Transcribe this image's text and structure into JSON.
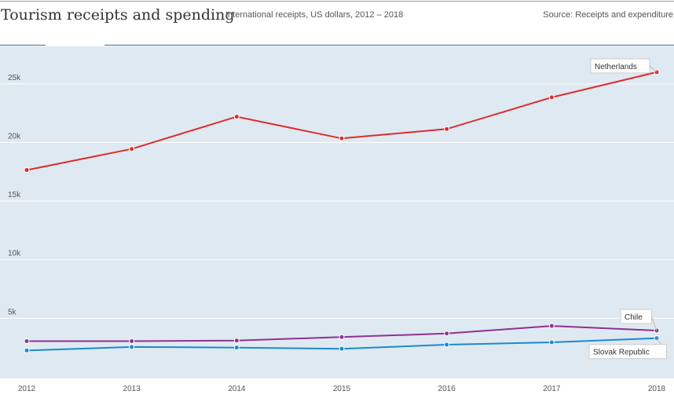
{
  "header": {
    "title": "Tourism receipts and spending",
    "subtitle": "International receipts, US dollars, 2012 – 2018",
    "source": "Source: Receipts and expenditure"
  },
  "chart_data": {
    "type": "line",
    "x": [
      2012,
      2013,
      2014,
      2015,
      2016,
      2017,
      2018
    ],
    "ylim": [
      0,
      27000
    ],
    "y_ticks": [
      5000,
      10000,
      15000,
      20000,
      25000
    ],
    "y_tick_labels": [
      "5k",
      "10k",
      "15k",
      "20k",
      "25k"
    ],
    "x_tick_labels": [
      "2012",
      "2013",
      "2014",
      "2015",
      "2016",
      "2017",
      "2018"
    ],
    "grid": "horizontal",
    "legend": "end-of-line labels",
    "background_color": "#dfe9f1",
    "series": [
      {
        "name": "Netherlands",
        "color": "#dc2d2e",
        "values": [
          17650,
          19450,
          22200,
          20350,
          21150,
          23850,
          26000
        ]
      },
      {
        "name": "Chile",
        "color": "#8e3390",
        "values": [
          3050,
          3050,
          3100,
          3400,
          3700,
          4350,
          3950
        ]
      },
      {
        "name": "Slovak Republic",
        "color": "#1a8ad0",
        "values": [
          2250,
          2550,
          2500,
          2400,
          2750,
          2950,
          3300
        ]
      }
    ]
  }
}
